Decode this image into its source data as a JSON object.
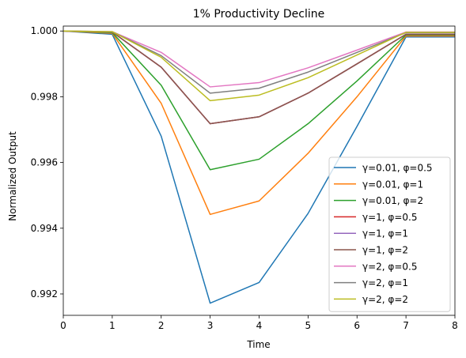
{
  "chart_data": {
    "type": "line",
    "title": "1% Productivity Decline",
    "xlabel": "Time",
    "ylabel": "Normalized Output",
    "xlim": [
      0,
      8
    ],
    "ylim": [
      0.99135,
      1.00015
    ],
    "x": [
      0,
      1,
      2,
      3,
      4,
      5,
      6,
      7,
      8
    ],
    "xticks": [
      0,
      1,
      2,
      3,
      4,
      5,
      6,
      7,
      8
    ],
    "xtick_labels": [
      "0",
      "1",
      "2",
      "3",
      "4",
      "5",
      "6",
      "7",
      "8"
    ],
    "yticks": [
      0.992,
      0.994,
      0.996,
      0.998,
      1.0
    ],
    "ytick_labels": [
      "0.992",
      "0.994",
      "0.996",
      "0.998",
      "1.000"
    ],
    "grid": false,
    "legend_position": "lower-right",
    "series": [
      {
        "name": "γ=0.01, φ=0.5",
        "color": "#1f77b4",
        "values": [
          1.0,
          0.9999,
          0.9968,
          0.99172,
          0.99235,
          0.99445,
          0.9971,
          0.99982,
          0.99982
        ]
      },
      {
        "name": "γ=0.01, φ=1",
        "color": "#ff7f0e",
        "values": [
          1.0,
          0.99993,
          0.9978,
          0.99442,
          0.99483,
          0.99628,
          0.998,
          0.99985,
          0.99985
        ]
      },
      {
        "name": "γ=0.01, φ=2",
        "color": "#2ca02c",
        "values": [
          1.0,
          0.99995,
          0.99835,
          0.99578,
          0.9961,
          0.99718,
          0.99848,
          0.99988,
          0.99988
        ]
      },
      {
        "name": "γ=1, φ=0.5",
        "color": "#d62728",
        "values": [
          1.0,
          0.99997,
          0.9989,
          0.99718,
          0.99739,
          0.99811,
          0.999,
          0.9999,
          0.9999
        ]
      },
      {
        "name": "γ=1, φ=1",
        "color": "#9467bd",
        "values": [
          1.0,
          0.99997,
          0.9989,
          0.99718,
          0.99739,
          0.99811,
          0.999,
          0.9999,
          0.9999
        ]
      },
      {
        "name": "γ=1, φ=2",
        "color": "#8c564b",
        "values": [
          1.0,
          0.99997,
          0.9989,
          0.99718,
          0.99739,
          0.99811,
          0.999,
          0.9999,
          0.9999
        ]
      },
      {
        "name": "γ=2, φ=0.5",
        "color": "#e377c2",
        "values": [
          1.0,
          0.99998,
          0.99935,
          0.9983,
          0.99843,
          0.99888,
          0.99942,
          0.99997,
          0.99997
        ]
      },
      {
        "name": "γ=2, φ=1",
        "color": "#7f7f7f",
        "values": [
          1.0,
          0.99998,
          0.99925,
          0.99811,
          0.99826,
          0.99875,
          0.99935,
          0.99995,
          0.99995
        ]
      },
      {
        "name": "γ=2, φ=2",
        "color": "#bcbd22",
        "values": [
          1.0,
          0.99998,
          0.9992,
          0.99788,
          0.99805,
          0.99858,
          0.99927,
          0.99996,
          0.99996
        ]
      }
    ]
  }
}
